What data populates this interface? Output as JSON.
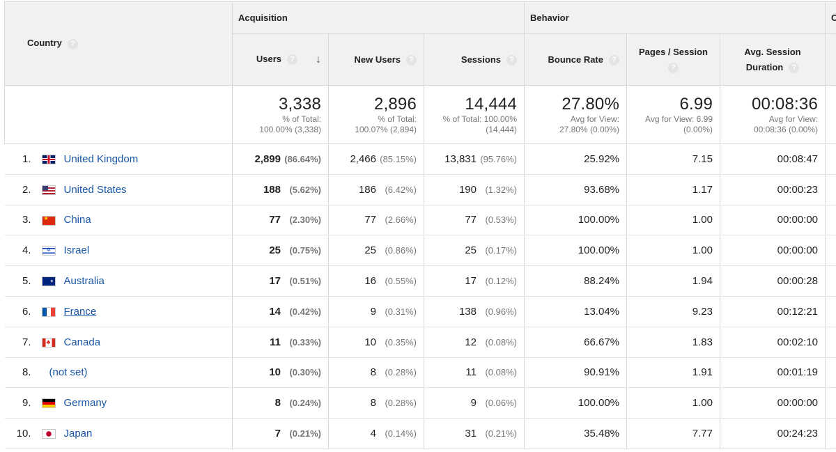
{
  "header": {
    "country_label": "Country",
    "groups": [
      "Acquisition",
      "Behavior"
    ],
    "cut_off_group_letter": "C",
    "columns": [
      "Users",
      "New Users",
      "Sessions",
      "Bounce Rate",
      "Pages / Session",
      "Avg. Session Duration"
    ],
    "pages_session_line1": "Pages / Session",
    "avg_session_line1": "Avg. Session",
    "avg_session_line2": "Duration",
    "help_glyph": "?",
    "sort_icon": "down-arrow-icon"
  },
  "totals": {
    "users": {
      "value": "3,338",
      "line1": "% of Total:",
      "line2": "100.00% (3,338)"
    },
    "new_users": {
      "value": "2,896",
      "line1": "% of Total:",
      "line2": "100.07% (2,894)"
    },
    "sessions": {
      "value": "14,444",
      "line1": "% of Total: 100.00%",
      "line2": "(14,444)"
    },
    "bounce_rate": {
      "value": "27.80%",
      "line1": "Avg for View:",
      "line2": "27.80% (0.00%)"
    },
    "pages_session": {
      "value": "6.99",
      "line1": "Avg for View: 6.99",
      "line2": "(0.00%)"
    },
    "avg_duration": {
      "value": "00:08:36",
      "line1": "Avg for View:",
      "line2": "00:08:36 (0.00%)"
    }
  },
  "rows": [
    {
      "rank": "1.",
      "country": "United Kingdom",
      "flag": "uk",
      "users": "2,899",
      "users_pct": "(86.64%)",
      "new_users": "2,466",
      "new_users_pct": "(85.15%)",
      "sessions": "13,831",
      "sessions_pct": "(95.76%)",
      "bounce": "25.92%",
      "pages": "7.15",
      "duration": "00:08:47"
    },
    {
      "rank": "2.",
      "country": "United States",
      "flag": "us",
      "users": "188",
      "users_pct": "(5.62%)",
      "new_users": "186",
      "new_users_pct": "(6.42%)",
      "sessions": "190",
      "sessions_pct": "(1.32%)",
      "bounce": "93.68%",
      "pages": "1.17",
      "duration": "00:00:23"
    },
    {
      "rank": "3.",
      "country": "China",
      "flag": "cn",
      "users": "77",
      "users_pct": "(2.30%)",
      "new_users": "77",
      "new_users_pct": "(2.66%)",
      "sessions": "77",
      "sessions_pct": "(0.53%)",
      "bounce": "100.00%",
      "pages": "1.00",
      "duration": "00:00:00"
    },
    {
      "rank": "4.",
      "country": "Israel",
      "flag": "il",
      "users": "25",
      "users_pct": "(0.75%)",
      "new_users": "25",
      "new_users_pct": "(0.86%)",
      "sessions": "25",
      "sessions_pct": "(0.17%)",
      "bounce": "100.00%",
      "pages": "1.00",
      "duration": "00:00:00"
    },
    {
      "rank": "5.",
      "country": "Australia",
      "flag": "au",
      "users": "17",
      "users_pct": "(0.51%)",
      "new_users": "16",
      "new_users_pct": "(0.55%)",
      "sessions": "17",
      "sessions_pct": "(0.12%)",
      "bounce": "88.24%",
      "pages": "1.94",
      "duration": "00:00:28"
    },
    {
      "rank": "6.",
      "country": "France",
      "flag": "fr",
      "users": "14",
      "users_pct": "(0.42%)",
      "new_users": "9",
      "new_users_pct": "(0.31%)",
      "sessions": "138",
      "sessions_pct": "(0.96%)",
      "bounce": "13.04%",
      "pages": "9.23",
      "duration": "00:12:21"
    },
    {
      "rank": "7.",
      "country": "Canada",
      "flag": "ca",
      "users": "11",
      "users_pct": "(0.33%)",
      "new_users": "10",
      "new_users_pct": "(0.35%)",
      "sessions": "12",
      "sessions_pct": "(0.08%)",
      "bounce": "66.67%",
      "pages": "1.83",
      "duration": "00:02:10"
    },
    {
      "rank": "8.",
      "country": "(not set)",
      "flag": "",
      "users": "10",
      "users_pct": "(0.30%)",
      "new_users": "8",
      "new_users_pct": "(0.28%)",
      "sessions": "11",
      "sessions_pct": "(0.08%)",
      "bounce": "90.91%",
      "pages": "1.91",
      "duration": "00:01:19"
    },
    {
      "rank": "9.",
      "country": "Germany",
      "flag": "de",
      "users": "8",
      "users_pct": "(0.24%)",
      "new_users": "8",
      "new_users_pct": "(0.28%)",
      "sessions": "9",
      "sessions_pct": "(0.06%)",
      "bounce": "100.00%",
      "pages": "1.00",
      "duration": "00:00:00"
    },
    {
      "rank": "10.",
      "country": "Japan",
      "flag": "jp",
      "users": "7",
      "users_pct": "(0.21%)",
      "new_users": "4",
      "new_users_pct": "(0.14%)",
      "sessions": "31",
      "sessions_pct": "(0.21%)",
      "bounce": "35.48%",
      "pages": "7.77",
      "duration": "00:24:23"
    }
  ]
}
